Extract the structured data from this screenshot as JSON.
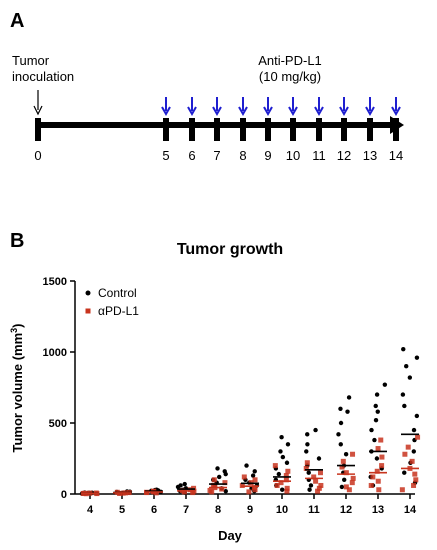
{
  "panel_a": {
    "label": "A",
    "inoculation_label_line1": "Tumor",
    "inoculation_label_line2": "inoculation",
    "treatment_label_line1": "Anti-PD-L1",
    "treatment_label_line2": "(10 mg/kg)",
    "timeline_days": [
      "0",
      "5",
      "6",
      "7",
      "8",
      "9",
      "10",
      "11",
      "12",
      "13",
      "14"
    ],
    "dosing_days": [
      5,
      6,
      7,
      8,
      9,
      10,
      11,
      12,
      13,
      14
    ],
    "colors": {
      "timeline": "#000000",
      "dose_arrow": "#1f1fd0"
    }
  },
  "panel_b": {
    "label": "B",
    "chart_data": {
      "type": "scatter",
      "title": "Tumor growth",
      "xlabel": "Day",
      "ylabel_main": "Tumor volume (mm",
      "ylabel_sup": "3",
      "ylabel_end": ")",
      "ylim": [
        0,
        1500
      ],
      "yticks": [
        "0",
        "500",
        "1000",
        "1500"
      ],
      "ytick_values": [
        0,
        500,
        1000,
        1500
      ],
      "categories": [
        "4",
        "5",
        "6",
        "7",
        "8",
        "9",
        "10",
        "11",
        "12",
        "13",
        "14"
      ],
      "legend_position": "top-left",
      "grid": false,
      "series": [
        {
          "name": "Control",
          "color": "#000000",
          "marker": "circle",
          "points": [
            [
              4,
              3
            ],
            [
              4,
              4
            ],
            [
              4,
              5
            ],
            [
              4,
              6
            ],
            [
              4,
              7
            ],
            [
              4,
              8
            ],
            [
              4,
              9
            ],
            [
              4,
              10
            ],
            [
              5,
              6
            ],
            [
              5,
              8
            ],
            [
              5,
              10
            ],
            [
              5,
              12
            ],
            [
              5,
              14
            ],
            [
              5,
              16
            ],
            [
              5,
              18
            ],
            [
              6,
              12
            ],
            [
              6,
              15
            ],
            [
              6,
              18
            ],
            [
              6,
              20
            ],
            [
              6,
              22
            ],
            [
              6,
              25
            ],
            [
              6,
              28
            ],
            [
              6,
              30
            ],
            [
              7,
              10
            ],
            [
              7,
              20
            ],
            [
              7,
              30
            ],
            [
              7,
              40
            ],
            [
              7,
              50
            ],
            [
              7,
              60
            ],
            [
              7,
              70
            ],
            [
              8,
              20
            ],
            [
              8,
              40
            ],
            [
              8,
              60
            ],
            [
              8,
              80
            ],
            [
              8,
              100
            ],
            [
              8,
              120
            ],
            [
              8,
              140
            ],
            [
              8,
              160
            ],
            [
              8,
              180
            ],
            [
              9,
              20
            ],
            [
              9,
              40
            ],
            [
              9,
              60
            ],
            [
              9,
              80
            ],
            [
              9,
              100
            ],
            [
              9,
              130
            ],
            [
              9,
              160
            ],
            [
              9,
              200
            ],
            [
              10,
              30
            ],
            [
              10,
              60
            ],
            [
              10,
              100
            ],
            [
              10,
              140
            ],
            [
              10,
              180
            ],
            [
              10,
              220
            ],
            [
              10,
              260
            ],
            [
              10,
              300
            ],
            [
              10,
              350
            ],
            [
              10,
              400
            ],
            [
              11,
              30
            ],
            [
              11,
              60
            ],
            [
              11,
              100
            ],
            [
              11,
              150
            ],
            [
              11,
              200
            ],
            [
              11,
              250
            ],
            [
              11,
              300
            ],
            [
              11,
              350
            ],
            [
              11,
              420
            ],
            [
              11,
              450
            ],
            [
              12,
              50
            ],
            [
              12,
              100
            ],
            [
              12,
              150
            ],
            [
              12,
              200
            ],
            [
              12,
              280
            ],
            [
              12,
              350
            ],
            [
              12,
              420
            ],
            [
              12,
              500
            ],
            [
              12,
              580
            ],
            [
              12,
              600
            ],
            [
              12,
              680
            ],
            [
              13,
              60
            ],
            [
              13,
              120
            ],
            [
              13,
              180
            ],
            [
              13,
              250
            ],
            [
              13,
              300
            ],
            [
              13,
              380
            ],
            [
              13,
              450
            ],
            [
              13,
              520
            ],
            [
              13,
              580
            ],
            [
              13,
              620
            ],
            [
              13,
              700
            ],
            [
              13,
              770
            ],
            [
              14,
              80
            ],
            [
              14,
              150
            ],
            [
              14,
              220
            ],
            [
              14,
              300
            ],
            [
              14,
              380
            ],
            [
              14,
              450
            ],
            [
              14,
              550
            ],
            [
              14,
              620
            ],
            [
              14,
              700
            ],
            [
              14,
              820
            ],
            [
              14,
              900
            ],
            [
              14,
              960
            ],
            [
              14,
              1020
            ]
          ],
          "means": [
            [
              4,
              5
            ],
            [
              5,
              10
            ],
            [
              6,
              20
            ],
            [
              7,
              35
            ],
            [
              8,
              70
            ],
            [
              9,
              75
            ],
            [
              10,
              120
            ],
            [
              11,
              170
            ],
            [
              12,
              200
            ],
            [
              13,
              300
            ],
            [
              14,
              420
            ]
          ]
        },
        {
          "name": "αPD-L1",
          "color": "#c8341e",
          "marker": "square",
          "points": [
            [
              4,
              2
            ],
            [
              4,
              3
            ],
            [
              4,
              4
            ],
            [
              4,
              5
            ],
            [
              4,
              6
            ],
            [
              4,
              7
            ],
            [
              5,
              4
            ],
            [
              5,
              6
            ],
            [
              5,
              8
            ],
            [
              5,
              10
            ],
            [
              5,
              12
            ],
            [
              6,
              8
            ],
            [
              6,
              10
            ],
            [
              6,
              12
            ],
            [
              6,
              15
            ],
            [
              6,
              18
            ],
            [
              6,
              20
            ],
            [
              7,
              10
            ],
            [
              7,
              15
            ],
            [
              7,
              20
            ],
            [
              7,
              25
            ],
            [
              7,
              30
            ],
            [
              7,
              40
            ],
            [
              8,
              15
            ],
            [
              8,
              25
            ],
            [
              8,
              35
            ],
            [
              8,
              45
            ],
            [
              8,
              60
            ],
            [
              8,
              80
            ],
            [
              8,
              100
            ],
            [
              9,
              15
            ],
            [
              9,
              30
            ],
            [
              9,
              45
            ],
            [
              9,
              60
            ],
            [
              9,
              80
            ],
            [
              9,
              100
            ],
            [
              9,
              120
            ],
            [
              10,
              20
            ],
            [
              10,
              40
            ],
            [
              10,
              60
            ],
            [
              10,
              80
            ],
            [
              10,
              100
            ],
            [
              10,
              130
            ],
            [
              10,
              160
            ],
            [
              10,
              200
            ],
            [
              11,
              20
            ],
            [
              11,
              40
            ],
            [
              11,
              60
            ],
            [
              11,
              90
            ],
            [
              11,
              120
            ],
            [
              11,
              150
            ],
            [
              11,
              180
            ],
            [
              11,
              220
            ],
            [
              12,
              30
            ],
            [
              12,
              50
            ],
            [
              12,
              80
            ],
            [
              12,
              110
            ],
            [
              12,
              150
            ],
            [
              12,
              190
            ],
            [
              12,
              230
            ],
            [
              12,
              280
            ],
            [
              13,
              30
            ],
            [
              13,
              60
            ],
            [
              13,
              90
            ],
            [
              13,
              120
            ],
            [
              13,
              160
            ],
            [
              13,
              200
            ],
            [
              13,
              260
            ],
            [
              13,
              320
            ],
            [
              13,
              380
            ],
            [
              14,
              30
            ],
            [
              14,
              60
            ],
            [
              14,
              100
            ],
            [
              14,
              140
            ],
            [
              14,
              180
            ],
            [
              14,
              230
            ],
            [
              14,
              280
            ],
            [
              14,
              330
            ],
            [
              14,
              400
            ]
          ],
          "means": [
            [
              4,
              4
            ],
            [
              5,
              8
            ],
            [
              6,
              14
            ],
            [
              7,
              22
            ],
            [
              8,
              45
            ],
            [
              9,
              55
            ],
            [
              10,
              90
            ],
            [
              11,
              110
            ],
            [
              12,
              140
            ],
            [
              13,
              150
            ],
            [
              14,
              180
            ]
          ]
        }
      ]
    }
  }
}
